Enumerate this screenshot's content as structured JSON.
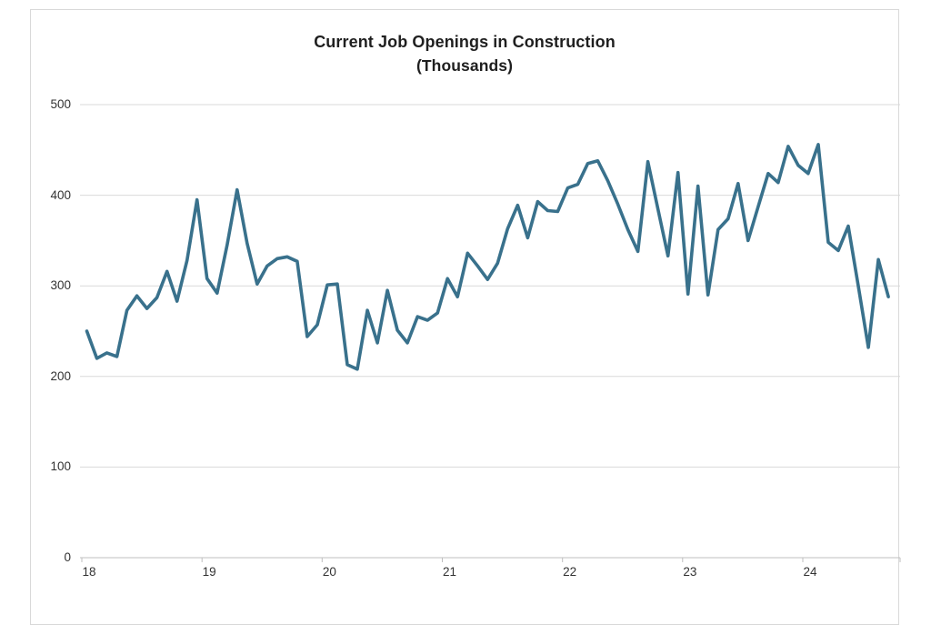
{
  "title": {
    "line1": "Current Job Openings in Construction",
    "line2": "(Thousands)"
  },
  "chart_data": {
    "type": "line",
    "title": "Current Job Openings in Construction (Thousands)",
    "series_name": "Construction job openings",
    "frequency": "monthly",
    "start_month": "2018-01",
    "end_month": "2024-09",
    "x_tick_labels": [
      "18",
      "19",
      "20",
      "21",
      "22",
      "23",
      "24"
    ],
    "y_ticks": [
      0,
      100,
      200,
      300,
      400,
      500
    ],
    "y_tick_labels": [
      "0",
      "100",
      "200",
      "300",
      "400",
      "500"
    ],
    "ylim": [
      0,
      500
    ],
    "grid": "horizontal",
    "legend": "none",
    "line_color": "#39718C",
    "gridline_color": "#d9d9d9",
    "axis_color": "#bfbfbf",
    "values": [
      250,
      220,
      226,
      222,
      273,
      289,
      275,
      287,
      316,
      283,
      328,
      395,
      308,
      292,
      345,
      406,
      347,
      302,
      322,
      330,
      332,
      327,
      244,
      257,
      301,
      302,
      213,
      208,
      273,
      237,
      295,
      251,
      237,
      266,
      262,
      270,
      308,
      288,
      336,
      322,
      307,
      325,
      363,
      389,
      353,
      393,
      383,
      382,
      408,
      412,
      435,
      438,
      416,
      390,
      362,
      338,
      437,
      385,
      333,
      425,
      291,
      410,
      290,
      362,
      374,
      413,
      350,
      387,
      424,
      414,
      454,
      433,
      424,
      456,
      348,
      339,
      366,
      300,
      232,
      329,
      288
    ]
  }
}
